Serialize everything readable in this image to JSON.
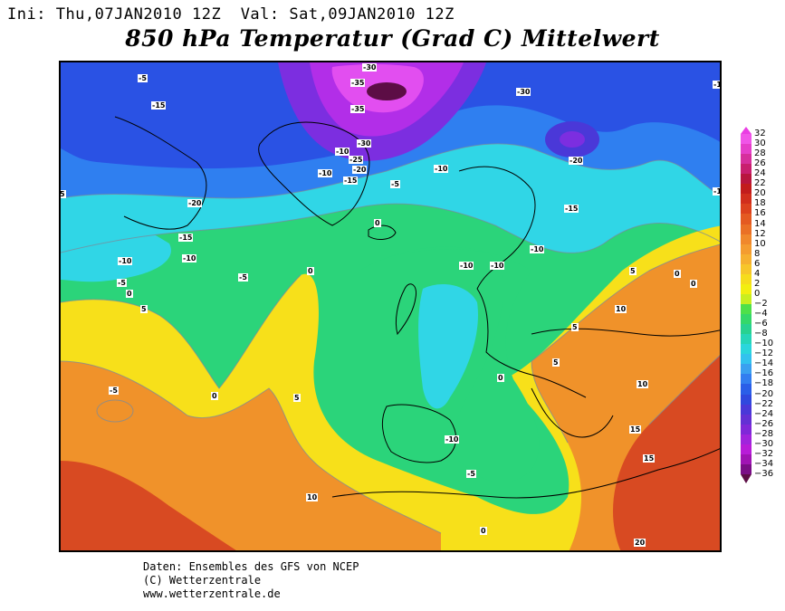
{
  "header": {
    "ini_label": "Ini:",
    "ini_value": "Thu,07JAN2010 12Z",
    "val_label": "Val:",
    "val_value": "Sat,09JAN2010 12Z"
  },
  "title": "850 hPa Temperatur (Grad C) Mittelwert",
  "colors": {
    "warm_red": "#d84a22",
    "orange": "#f0922a",
    "yellow": "#f7e01a",
    "green": "#2bd47a",
    "cyan": "#30d6e6",
    "blue": "#2a6cf0",
    "purple": "#b22ee8",
    "magenta": "#e24ef0"
  },
  "legend": {
    "labels": [
      "32",
      "30",
      "28",
      "26",
      "24",
      "22",
      "20",
      "18",
      "16",
      "14",
      "12",
      "10",
      "8",
      "6",
      "4",
      "2",
      "0",
      "−2",
      "−4",
      "−6",
      "−8",
      "−10",
      "−12",
      "−14",
      "−16",
      "−18",
      "−20",
      "−22",
      "−24",
      "−26",
      "−28",
      "−30",
      "−32",
      "−34",
      "−36"
    ],
    "colors": [
      "#f055e8",
      "#e53fc9",
      "#d62f9c",
      "#c81f6e",
      "#b8163e",
      "#c21c1c",
      "#d12e1c",
      "#dc421e",
      "#e45a22",
      "#ea7026",
      "#f0882c",
      "#f49c30",
      "#f6b030",
      "#f7c62a",
      "#f6dc1c",
      "#f2ee10",
      "#c8ee20",
      "#4ee04a",
      "#34d86a",
      "#28d290",
      "#26d6b8",
      "#2ad6dc",
      "#32c2ee",
      "#3aa0f0",
      "#327ef0",
      "#2a5ee8",
      "#3048de",
      "#4a38d8",
      "#6430d4",
      "#8028d8",
      "#a024dc",
      "#b81cd8",
      "#a014b4",
      "#7a0e86"
    ]
  },
  "contour_labels": [
    {
      "text": "-30"
    },
    {
      "text": "-35"
    },
    {
      "text": "-35"
    },
    {
      "text": "-30"
    },
    {
      "text": "-25"
    },
    {
      "text": "-20"
    },
    {
      "text": "-15"
    },
    {
      "text": "-10"
    },
    {
      "text": "-10"
    },
    {
      "text": "-5"
    },
    {
      "text": "-10"
    },
    {
      "text": "-30"
    },
    {
      "text": "-20"
    },
    {
      "text": "-15"
    },
    {
      "text": "-5"
    },
    {
      "text": "-15"
    },
    {
      "text": "-20"
    },
    {
      "text": "-15"
    },
    {
      "text": "-10"
    },
    {
      "text": "-10"
    },
    {
      "text": "-5"
    },
    {
      "text": "0"
    },
    {
      "text": "-5"
    },
    {
      "text": "0"
    },
    {
      "text": "5"
    },
    {
      "text": "-10"
    },
    {
      "text": "-10"
    },
    {
      "text": "-10"
    },
    {
      "text": "5"
    },
    {
      "text": "0"
    },
    {
      "text": "0"
    },
    {
      "text": "10"
    },
    {
      "text": "5"
    },
    {
      "text": "5"
    },
    {
      "text": "0"
    },
    {
      "text": "10"
    },
    {
      "text": "-5"
    },
    {
      "text": "0"
    },
    {
      "text": "5"
    },
    {
      "text": "15"
    },
    {
      "text": "15"
    },
    {
      "text": "-10"
    },
    {
      "text": "-5"
    },
    {
      "text": "0"
    },
    {
      "text": "10"
    },
    {
      "text": "20"
    },
    {
      "text": "0"
    },
    {
      "text": "-1"
    },
    {
      "text": "5"
    },
    {
      "text": "-1"
    }
  ],
  "footer": {
    "line1": "Daten: Ensembles des GFS von NCEP",
    "line2": "(C) Wetterzentrale",
    "line3": "www.wetterzentrale.de"
  }
}
